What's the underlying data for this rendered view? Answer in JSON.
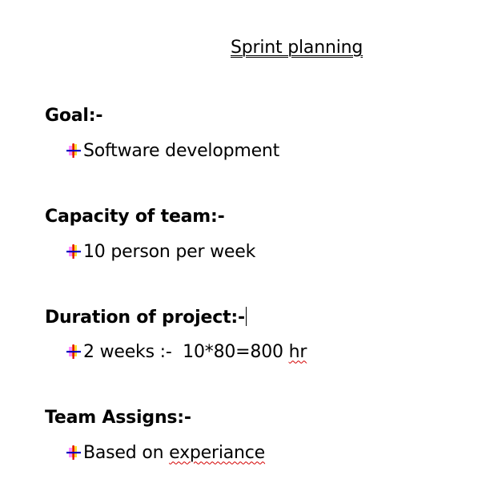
{
  "document": {
    "title": "Sprint planning",
    "sections": [
      {
        "heading": "Goal:-",
        "item": "Software development"
      },
      {
        "heading": "Capacity of team:-",
        "item": "10 person per week"
      },
      {
        "heading": "Duration of project:-",
        "item_prefix": "2 weeks :-  10*80=800 ",
        "item_flagged": "hr"
      },
      {
        "heading": "Team Assigns:-",
        "item_prefix": "Based on ",
        "item_flagged": "experiance"
      }
    ]
  },
  "icons": {
    "bullet": "arrow-cross-bullet-icon",
    "bullet_colors": [
      "#ff00ff",
      "#ffd400",
      "#0000c0",
      "#e00000"
    ]
  }
}
